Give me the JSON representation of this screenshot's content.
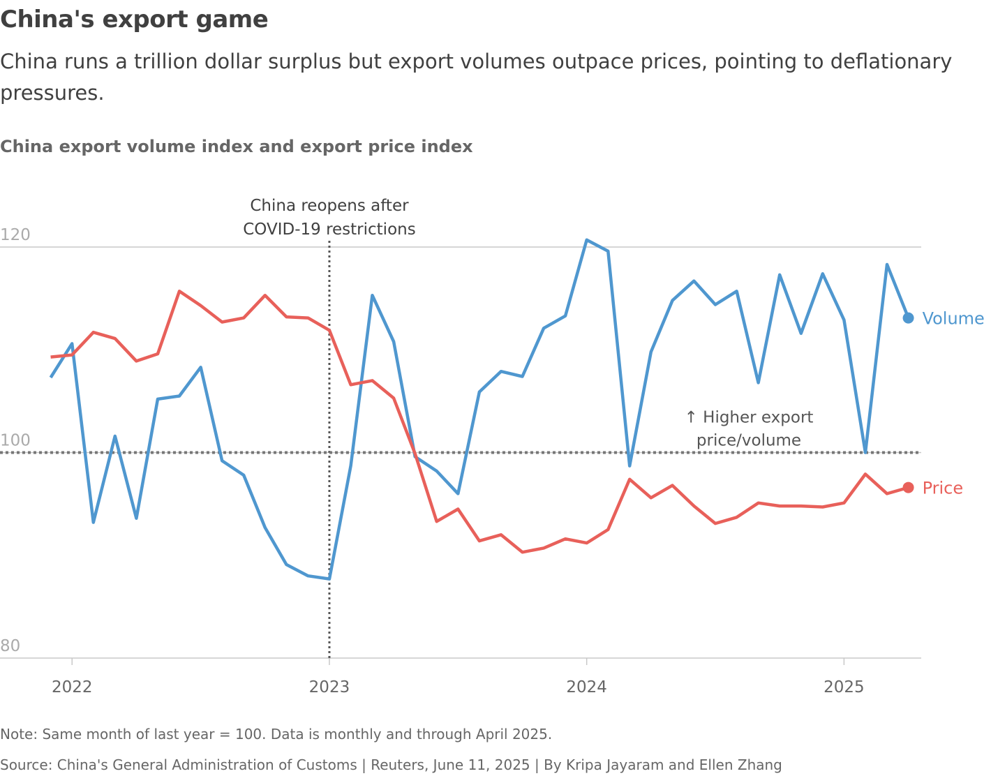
{
  "chart_data": {
    "type": "line",
    "title": "China's export game",
    "subtitle": "China runs a trillion dollar surplus but export volumes outpace prices, pointing to deflationary pressures.",
    "chart_title": "China export volume index and export price index",
    "note": "Note: Same month of last year = 100. Data is monthly and through April 2025.",
    "source": "Source: China's General Administration of Customs | Reuters, June 11, 2025 | By Kripa Jayaram and Ellen Zhang",
    "x": [
      2021.917,
      2022.0,
      2022.083,
      2022.167,
      2022.25,
      2022.333,
      2022.417,
      2022.5,
      2022.583,
      2022.667,
      2022.75,
      2022.833,
      2022.917,
      2023.0,
      2023.083,
      2023.167,
      2023.25,
      2023.333,
      2023.417,
      2023.5,
      2023.583,
      2023.667,
      2023.75,
      2023.833,
      2023.917,
      2024.0,
      2024.083,
      2024.167,
      2024.25,
      2024.333,
      2024.417,
      2024.5,
      2024.583,
      2024.667,
      2024.75,
      2024.833,
      2024.917,
      2025.0,
      2025.083,
      2025.167,
      2025.25
    ],
    "series": [
      {
        "name": "Volume",
        "color": "#4f97cf",
        "values": [
          107.3,
          110.6,
          93.2,
          101.6,
          93.6,
          105.2,
          105.5,
          108.3,
          99.2,
          97.8,
          92.7,
          89.1,
          88.0,
          87.7,
          98.7,
          115.3,
          110.8,
          99.6,
          98.2,
          96.0,
          105.9,
          107.9,
          107.4,
          112.1,
          113.3,
          120.7,
          119.6,
          98.7,
          109.8,
          114.8,
          116.7,
          114.4,
          115.7,
          106.8,
          117.3,
          111.6,
          117.4,
          112.9,
          100.0,
          118.3,
          113.1
        ]
      },
      {
        "name": "Price",
        "color": "#e8605a",
        "values": [
          109.3,
          109.5,
          111.7,
          111.1,
          108.9,
          109.6,
          115.7,
          114.3,
          112.7,
          113.1,
          115.3,
          113.2,
          113.1,
          111.9,
          106.6,
          107.0,
          105.3,
          99.9,
          93.3,
          94.5,
          91.4,
          92.0,
          90.3,
          90.7,
          91.6,
          91.2,
          92.5,
          97.4,
          95.6,
          96.8,
          94.8,
          93.1,
          93.7,
          95.1,
          94.8,
          94.8,
          94.7,
          95.1,
          97.9,
          96.0,
          96.6
        ]
      }
    ],
    "xlim": [
      2021.72,
      2025.3
    ],
    "xticks": [
      2022,
      2023,
      2024,
      2025
    ],
    "ylim": [
      80,
      120
    ],
    "yticks": [
      80,
      100,
      120
    ],
    "grid": true,
    "annotations": [
      {
        "text": [
          "China reopens after",
          "COVID-19 restrictions"
        ],
        "x": 2023
      },
      {
        "text": [
          "↑ Higher export",
          "price/volume"
        ],
        "y": 100
      }
    ]
  }
}
